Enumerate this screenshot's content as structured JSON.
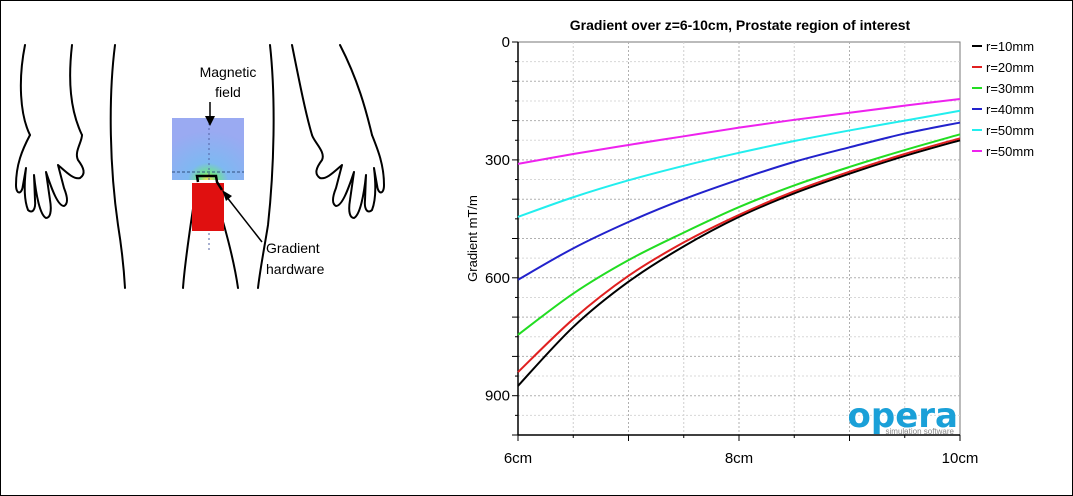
{
  "illustration": {
    "magnetic_field_label": [
      "Magnetic",
      "field"
    ],
    "gradient_hardware_label": [
      "Gradient",
      "hardware"
    ]
  },
  "chart_data": {
    "type": "line",
    "title": "Gradient over z=6-10cm, Prostate region of interest",
    "xlabel": "",
    "ylabel": "Gradient mT/m",
    "xlim": [
      6,
      10
    ],
    "ylim": [
      0,
      1000
    ],
    "y_inverted": true,
    "x_ticks": [
      {
        "value": 6,
        "label": "6cm"
      },
      {
        "value": 8,
        "label": "8cm"
      },
      {
        "value": 10,
        "label": "10cm"
      }
    ],
    "y_ticks": [
      {
        "value": 0,
        "label": "0"
      },
      {
        "value": 300,
        "label": "300"
      },
      {
        "value": 600,
        "label": "600"
      },
      {
        "value": 900,
        "label": "900"
      }
    ],
    "grid": true,
    "legend_position": "top-right",
    "x": [
      6,
      6.5,
      7,
      7.5,
      8,
      8.5,
      9,
      9.5,
      10
    ],
    "series": [
      {
        "name": "r=10mm",
        "color": "#000000",
        "values": [
          875,
          725,
          610,
          520,
          445,
          385,
          335,
          290,
          250
        ]
      },
      {
        "name": "r=20mm",
        "color": "#e02020",
        "values": [
          840,
          705,
          595,
          510,
          440,
          380,
          330,
          285,
          245
        ]
      },
      {
        "name": "r=30mm",
        "color": "#22dd22",
        "values": [
          745,
          640,
          555,
          485,
          420,
          365,
          318,
          275,
          235
        ]
      },
      {
        "name": "r=40mm",
        "color": "#2222cc",
        "values": [
          605,
          525,
          458,
          400,
          350,
          305,
          268,
          233,
          205
        ]
      },
      {
        "name": "r=50mm_cyan",
        "legend": "r=50mm",
        "color": "#22eeee",
        "values": [
          445,
          395,
          352,
          315,
          282,
          252,
          225,
          200,
          175
        ]
      },
      {
        "name": "r=50mm",
        "color": "#ee22ee",
        "values": [
          310,
          285,
          262,
          240,
          218,
          198,
          180,
          162,
          145
        ]
      }
    ],
    "legend": [
      {
        "label": "r=10mm",
        "color": "#000000"
      },
      {
        "label": "r=20mm",
        "color": "#e02020"
      },
      {
        "label": "r=30mm",
        "color": "#22dd22"
      },
      {
        "label": "r=40mm",
        "color": "#2222cc"
      },
      {
        "label": "r=50mm",
        "color": "#22eeee"
      },
      {
        "label": "r=50mm",
        "color": "#ee22ee"
      }
    ]
  },
  "logo": {
    "brand": "opera",
    "tagline": "simulation software",
    "color": "#1aa0d8"
  }
}
